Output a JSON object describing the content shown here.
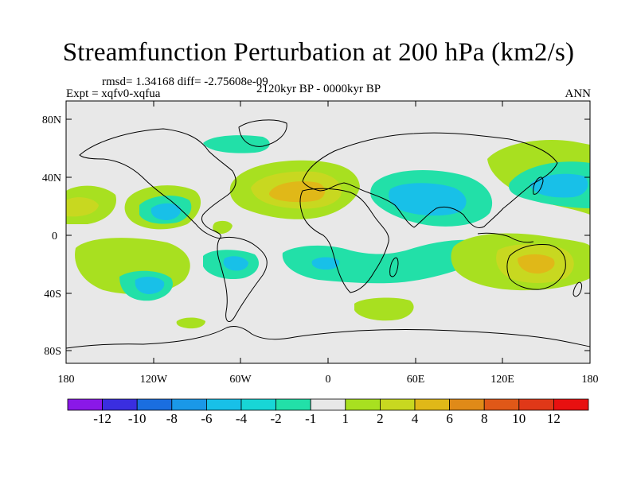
{
  "title": "Streamfunction Perturbation at 200 hPa (km2/s)",
  "stats": "rmsd= 1.34168 diff= -2.75608e-09",
  "experiment": "Expt = xqfv0-xqfua",
  "period": "2120kyr BP - 0000kyr BP",
  "season": "ANN",
  "axes": {
    "lat_labels": [
      "80N",
      "40N",
      "0",
      "40S",
      "80S"
    ],
    "lon_labels": [
      "180",
      "120W",
      "60W",
      "0",
      "60E",
      "120E",
      "180"
    ]
  },
  "colorbar": {
    "labels": [
      "-12",
      "-10",
      "-8",
      "-6",
      "-4",
      "-2",
      "-1",
      "1",
      "2",
      "4",
      "6",
      "8",
      "10",
      "12"
    ],
    "colors": [
      "#8a18e8",
      "#3a2ee0",
      "#1a6ee0",
      "#1a98e8",
      "#18c0e8",
      "#18d6d6",
      "#22e0a8",
      "#e8e8e8",
      "#a8e020",
      "#c8d820",
      "#e0b818",
      "#e08a18",
      "#e05818",
      "#e03818",
      "#e81010"
    ]
  },
  "colors": {
    "ocean_neutral": "#e8e8e8",
    "coastline": "#000000"
  }
}
